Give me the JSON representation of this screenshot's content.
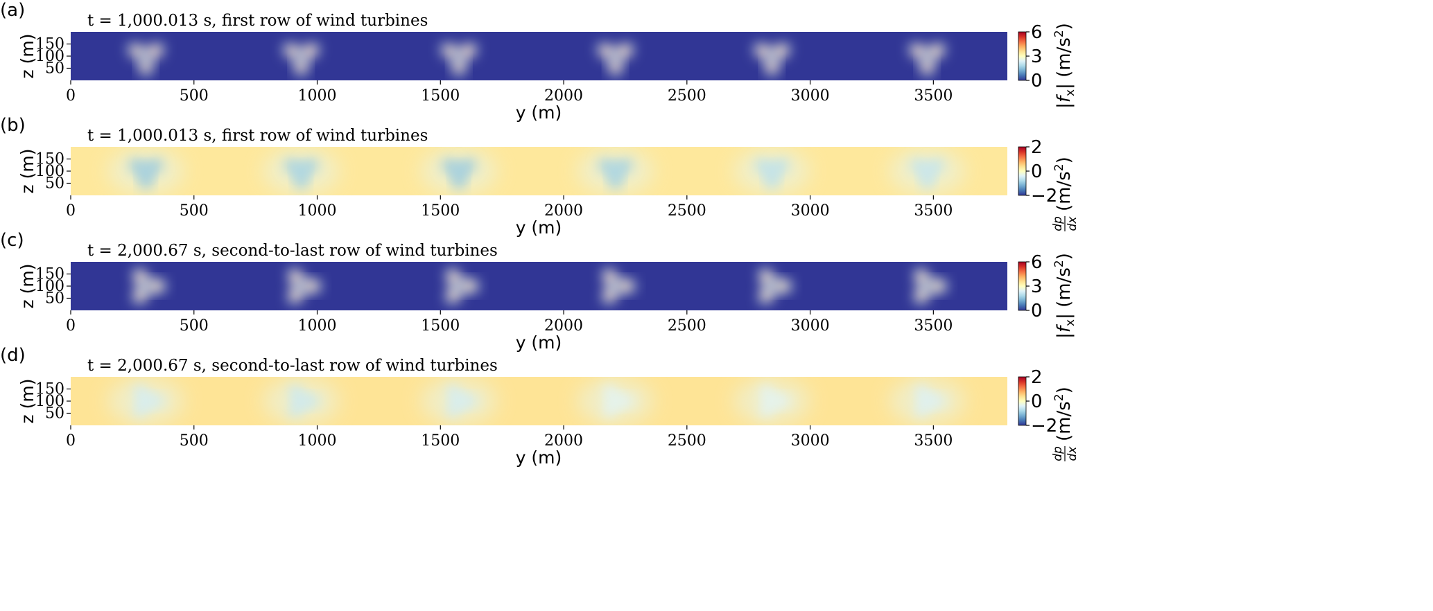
{
  "chart_data": [
    {
      "type": "heatmap",
      "panel_label": "(a)",
      "title": "t = 1,000.013 s, first row of wind turbines",
      "xlabel": "y (m)",
      "ylabel": "z (m)",
      "xlim": [
        0,
        3800
      ],
      "ylim": [
        0,
        200
      ],
      "xticks": [
        0,
        500,
        1000,
        1500,
        2000,
        2500,
        3000,
        3500
      ],
      "yticks": [
        50,
        100,
        150
      ],
      "colorbar": {
        "label": "|f_x| (m/s²)",
        "label_parts": [
          "|",
          "f",
          "x",
          "| (m/s",
          "2",
          ")"
        ],
        "ticks": [
          0,
          3,
          6
        ],
        "range": [
          0,
          6
        ],
        "colormap": "RdYlBu_r"
      },
      "background_value": 0,
      "grid": false,
      "turbines": [
        {
          "y_center": 305,
          "hub_z": 100,
          "intensity": 0.95,
          "blade_deg": 0
        },
        {
          "y_center": 935,
          "hub_z": 100,
          "intensity": 0.9,
          "blade_deg": 0
        },
        {
          "y_center": 1575,
          "hub_z": 100,
          "intensity": 0.92,
          "blade_deg": 0
        },
        {
          "y_center": 2210,
          "hub_z": 100,
          "intensity": 0.8,
          "blade_deg": 0
        },
        {
          "y_center": 2845,
          "hub_z": 100,
          "intensity": 0.75,
          "blade_deg": 0
        },
        {
          "y_center": 3475,
          "hub_z": 100,
          "intensity": 0.72,
          "blade_deg": 0
        }
      ]
    },
    {
      "type": "heatmap",
      "panel_label": "(b)",
      "title": "t = 1,000.013 s, first row of wind turbines",
      "xlabel": "y (m)",
      "ylabel": "z (m)",
      "xlim": [
        0,
        3800
      ],
      "ylim": [
        0,
        200
      ],
      "xticks": [
        0,
        500,
        1000,
        1500,
        2000,
        2500,
        3000,
        3500
      ],
      "yticks": [
        50,
        100,
        150
      ],
      "colorbar": {
        "label": "dp/dx (m/s²)",
        "label_parts": [
          "dp",
          "dx",
          "(m/s",
          "2",
          ")"
        ],
        "ticks": [
          -2,
          0,
          2
        ],
        "tick_labels": [
          "−2",
          "0",
          "2"
        ],
        "range": [
          -2,
          2
        ],
        "colormap": "RdYlBu_r"
      },
      "background_value": 0.3,
      "grid": false,
      "turbines": [
        {
          "y_center": 305,
          "hub_z": 100,
          "intensity": 0.75,
          "blade_deg": 0
        },
        {
          "y_center": 935,
          "hub_z": 100,
          "intensity": 0.7,
          "blade_deg": 0
        },
        {
          "y_center": 1575,
          "hub_z": 100,
          "intensity": 0.75,
          "blade_deg": 0
        },
        {
          "y_center": 2210,
          "hub_z": 100,
          "intensity": 0.7,
          "blade_deg": 0
        },
        {
          "y_center": 2845,
          "hub_z": 100,
          "intensity": 0.55,
          "blade_deg": 0
        },
        {
          "y_center": 3475,
          "hub_z": 100,
          "intensity": 0.5,
          "blade_deg": 0
        }
      ]
    },
    {
      "type": "heatmap",
      "panel_label": "(c)",
      "title": "t = 2,000.67 s, second-to-last row of wind turbines",
      "xlabel": "y (m)",
      "ylabel": "z (m)",
      "xlim": [
        0,
        3800
      ],
      "ylim": [
        0,
        200
      ],
      "xticks": [
        0,
        500,
        1000,
        1500,
        2000,
        2500,
        3000,
        3500
      ],
      "yticks": [
        50,
        100,
        150
      ],
      "colorbar": {
        "label": "|f_x| (m/s²)",
        "label_parts": [
          "|",
          "f",
          "x",
          "| (m/s",
          "2",
          ")"
        ],
        "ticks": [
          0,
          3,
          6
        ],
        "range": [
          0,
          6
        ],
        "colormap": "RdYlBu_r"
      },
      "background_value": 0,
      "grid": false,
      "turbines": [
        {
          "y_center": 305,
          "hub_z": 100,
          "intensity": 0.55,
          "blade_deg": 30
        },
        {
          "y_center": 935,
          "hub_z": 100,
          "intensity": 0.6,
          "blade_deg": 30
        },
        {
          "y_center": 1575,
          "hub_z": 100,
          "intensity": 0.55,
          "blade_deg": 30
        },
        {
          "y_center": 2210,
          "hub_z": 100,
          "intensity": 0.6,
          "blade_deg": 30
        },
        {
          "y_center": 2845,
          "hub_z": 100,
          "intensity": 0.5,
          "blade_deg": 30
        },
        {
          "y_center": 3475,
          "hub_z": 100,
          "intensity": 0.5,
          "blade_deg": 30
        }
      ]
    },
    {
      "type": "heatmap",
      "panel_label": "(d)",
      "title": "t = 2,000.67 s, second-to-last row of wind turbines",
      "xlabel": "y (m)",
      "ylabel": "z (m)",
      "xlim": [
        0,
        3800
      ],
      "ylim": [
        0,
        200
      ],
      "xticks": [
        0,
        500,
        1000,
        1500,
        2000,
        2500,
        3000,
        3500
      ],
      "yticks": [
        50,
        100,
        150
      ],
      "colorbar": {
        "label": "dp/dx (m/s²)",
        "label_parts": [
          "dp",
          "dx",
          "(m/s",
          "2",
          ")"
        ],
        "ticks": [
          -2,
          0,
          2
        ],
        "tick_labels": [
          "−2",
          "0",
          "2"
        ],
        "range": [
          -2,
          2
        ],
        "colormap": "RdYlBu_r"
      },
      "background_value": 0.35,
      "grid": false,
      "turbines": [
        {
          "y_center": 305,
          "hub_z": 100,
          "intensity": 0.4,
          "blade_deg": 30
        },
        {
          "y_center": 935,
          "hub_z": 100,
          "intensity": 0.45,
          "blade_deg": 30
        },
        {
          "y_center": 1575,
          "hub_z": 100,
          "intensity": 0.4,
          "blade_deg": 30
        },
        {
          "y_center": 2210,
          "hub_z": 100,
          "intensity": 0.3,
          "blade_deg": 30
        },
        {
          "y_center": 2845,
          "hub_z": 100,
          "intensity": 0.3,
          "blade_deg": 30
        },
        {
          "y_center": 3475,
          "hub_z": 100,
          "intensity": 0.35,
          "blade_deg": 30
        }
      ]
    }
  ]
}
